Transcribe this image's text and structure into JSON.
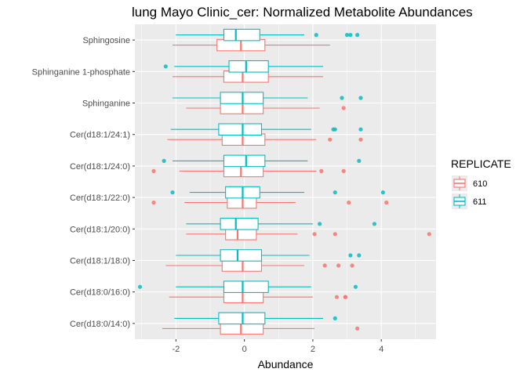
{
  "chart_data": {
    "type": "boxplot",
    "orientation": "horizontal",
    "title": "lung Mayo Clinic_cer: Normalized Metabolite Abundances",
    "xlabel": "Abundance",
    "ylabel": "",
    "xlim": [
      -3.2,
      5.6
    ],
    "x_ticks": [
      -2,
      0,
      2,
      4
    ],
    "x_tick_labels": [
      "-2",
      "0",
      "2",
      "4"
    ],
    "grid": true,
    "legend_title": "REPLICATE",
    "legend_position": "right",
    "categories": [
      "Sphingosine",
      "Sphinganine 1-phosphate",
      "Sphinganine",
      "Cer(d18:1/24:1)",
      "Cer(d18:1/24:0)",
      "Cer(d18:1/22:0)",
      "Cer(d18:1/20:0)",
      "Cer(d18:1/18:0)",
      "Cer(d18:0/16:0)",
      "Cer(d18:0/14:0)"
    ],
    "series": [
      {
        "name": "610",
        "color": "#F8766D",
        "boxes": [
          {
            "whisker_low": -2.1,
            "q1": -0.8,
            "median": -0.1,
            "q3": 0.6,
            "whisker_high": 2.5,
            "outliers": []
          },
          {
            "whisker_low": -2.1,
            "q1": -0.6,
            "median": -0.05,
            "q3": 0.7,
            "whisker_high": 2.3,
            "outliers": []
          },
          {
            "whisker_low": -1.7,
            "q1": -0.7,
            "median": -0.05,
            "q3": 0.55,
            "whisker_high": 2.2,
            "outliers": [
              2.9
            ]
          },
          {
            "whisker_low": -2.25,
            "q1": -0.65,
            "median": -0.05,
            "q3": 0.6,
            "whisker_high": 2.1,
            "outliers": [
              2.5,
              3.4
            ]
          },
          {
            "whisker_low": -1.9,
            "q1": -0.6,
            "median": -0.1,
            "q3": 0.55,
            "whisker_high": 2.1,
            "outliers": [
              -2.65,
              2.25,
              2.9
            ]
          },
          {
            "whisker_low": -1.75,
            "q1": -0.5,
            "median": -0.05,
            "q3": 0.35,
            "whisker_high": 1.5,
            "outliers": [
              -2.65,
              3.05,
              4.15
            ]
          },
          {
            "whisker_low": -1.7,
            "q1": -0.55,
            "median": -0.2,
            "q3": 0.35,
            "whisker_high": 1.55,
            "outliers": [
              2.05,
              2.65,
              5.4
            ]
          },
          {
            "whisker_low": -2.3,
            "q1": -0.65,
            "median": -0.05,
            "q3": 0.5,
            "whisker_high": 1.75,
            "outliers": [
              2.35,
              2.75,
              3.15
            ]
          },
          {
            "whisker_low": -2.2,
            "q1": -0.6,
            "median": -0.05,
            "q3": 0.55,
            "whisker_high": 2.0,
            "outliers": [
              2.7,
              2.95,
              2.95
            ]
          },
          {
            "whisker_low": -2.4,
            "q1": -0.7,
            "median": -0.1,
            "q3": 0.55,
            "whisker_high": 2.05,
            "outliers": [
              3.3
            ]
          }
        ]
      },
      {
        "name": "611",
        "color": "#00BFC4",
        "boxes": [
          {
            "whisker_low": -2.0,
            "q1": -0.6,
            "median": -0.25,
            "q3": 0.45,
            "whisker_high": 1.75,
            "outliers": [
              2.1,
              3.0,
              3.1,
              3.3
            ]
          },
          {
            "whisker_low": -2.05,
            "q1": -0.45,
            "median": 0.05,
            "q3": 0.7,
            "whisker_high": 2.3,
            "outliers": [
              -2.3
            ]
          },
          {
            "whisker_low": -2.1,
            "q1": -0.7,
            "median": -0.05,
            "q3": 0.55,
            "whisker_high": 1.85,
            "outliers": [
              2.85,
              3.4
            ]
          },
          {
            "whisker_low": -2.15,
            "q1": -0.75,
            "median": -0.05,
            "q3": 0.5,
            "whisker_high": 1.95,
            "outliers": [
              2.6,
              2.65,
              3.4
            ]
          },
          {
            "whisker_low": -2.1,
            "q1": -0.6,
            "median": 0.05,
            "q3": 0.6,
            "whisker_high": 1.85,
            "outliers": [
              -2.35,
              3.35
            ]
          },
          {
            "whisker_low": -1.6,
            "q1": -0.55,
            "median": -0.05,
            "q3": 0.45,
            "whisker_high": 1.75,
            "outliers": [
              -2.1,
              2.65,
              4.05
            ]
          },
          {
            "whisker_low": -1.7,
            "q1": -0.7,
            "median": -0.25,
            "q3": 0.4,
            "whisker_high": 2.0,
            "outliers": [
              2.2,
              3.8
            ]
          },
          {
            "whisker_low": -2.0,
            "q1": -0.7,
            "median": -0.2,
            "q3": 0.5,
            "whisker_high": 1.9,
            "outliers": [
              3.1,
              3.35
            ]
          },
          {
            "whisker_low": -2.0,
            "q1": -0.6,
            "median": -0.05,
            "q3": 0.7,
            "whisker_high": 1.95,
            "outliers": [
              -3.05,
              3.25
            ]
          },
          {
            "whisker_low": -2.05,
            "q1": -0.75,
            "median": -0.05,
            "q3": 0.6,
            "whisker_high": 2.3,
            "outliers": [
              2.65
            ]
          }
        ]
      }
    ]
  }
}
